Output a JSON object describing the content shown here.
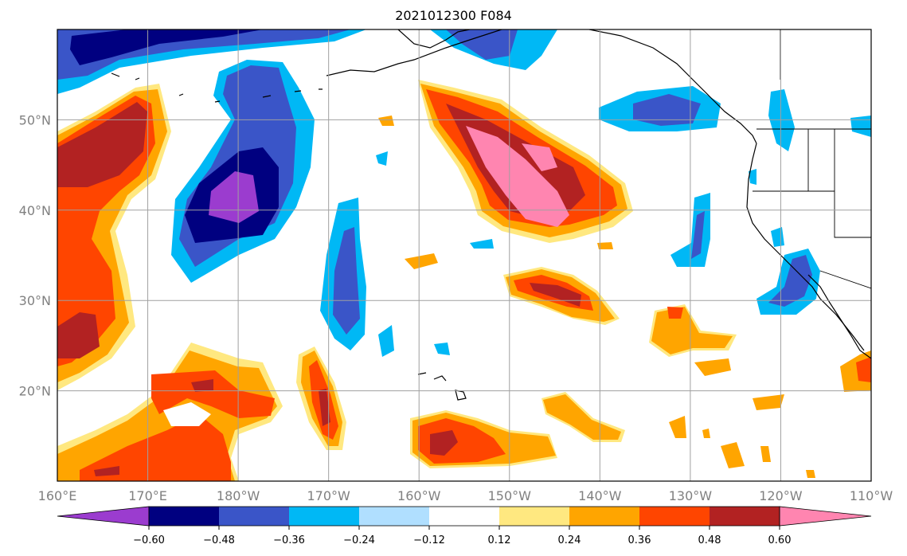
{
  "title": "2021012300 F084",
  "map": {
    "lon_range": [
      160,
      250
    ],
    "lat_range": [
      10,
      60
    ],
    "grid": true,
    "lat_ticks": [
      {
        "value": 20,
        "label": "20°N"
      },
      {
        "value": 30,
        "label": "30°N"
      },
      {
        "value": 40,
        "label": "40°N"
      },
      {
        "value": 50,
        "label": "50°N"
      }
    ],
    "lon_ticks": [
      {
        "value": 160,
        "label": "160°E"
      },
      {
        "value": 170,
        "label": "170°E"
      },
      {
        "value": 180,
        "label": "180°W"
      },
      {
        "value": 190,
        "label": "170°W"
      },
      {
        "value": 200,
        "label": "160°W"
      },
      {
        "value": 210,
        "label": "150°W"
      },
      {
        "value": 220,
        "label": "140°W"
      },
      {
        "value": 230,
        "label": "130°W"
      },
      {
        "value": 240,
        "label": "120°W"
      },
      {
        "value": 250,
        "label": "110°W"
      }
    ]
  },
  "colorbar": {
    "colors": [
      "#9b3ccf",
      "#000080",
      "#3a55c8",
      "#00b8f5",
      "#b0dfff",
      "#ffffff",
      "#ffe880",
      "#ffa500",
      "#ff4500",
      "#b22222",
      "#ff85b0"
    ],
    "ticks": [
      "−0.60",
      "−0.48",
      "−0.36",
      "−0.24",
      "−0.12",
      "0.12",
      "0.24",
      "0.36",
      "0.48",
      "0.60"
    ]
  },
  "colors": {
    "coastline": "#000000",
    "grid": "#a0a0a0",
    "land": "#ffffff"
  }
}
